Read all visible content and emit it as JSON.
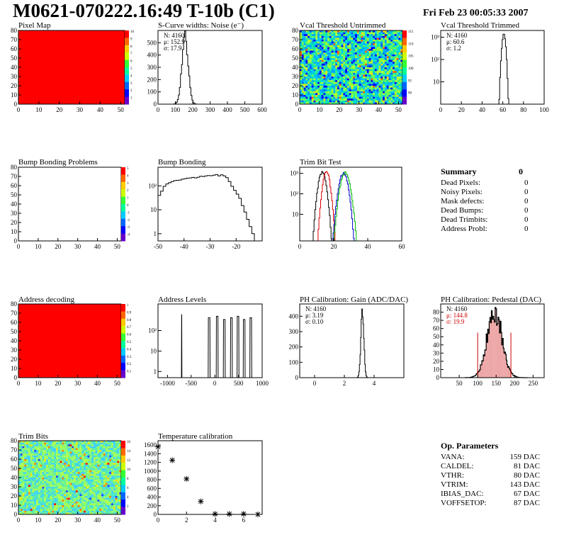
{
  "header": {
    "title": "M0621-070222.16:49 T-10b (C1)",
    "date": "Fri Feb 23 00:05:33 2007"
  },
  "panels": {
    "pixel_map": {
      "title": "Pixel Map"
    },
    "scurve": {
      "title": "S-Curve widths: Noise (e⁻)",
      "stats": [
        "N: 4160",
        "μ: 152.9",
        "σ: 17.9"
      ]
    },
    "vcal_untrimmed": {
      "title": "Vcal Threshold Untrimmed"
    },
    "vcal_trimmed": {
      "title": "Vcal Threshold Trimmed",
      "stats": [
        "N: 4160",
        "μ: 60.6",
        "σ:  1.2"
      ]
    },
    "bump_problems": {
      "title": "Bump Bonding Problems"
    },
    "bump_bonding": {
      "title": "Bump Bonding"
    },
    "trim_bit_test": {
      "title": "Trim Bit Test"
    },
    "address_decoding": {
      "title": "Address decoding"
    },
    "address_levels": {
      "title": "Address Levels"
    },
    "ph_gain": {
      "title": "PH Calibration: Gain (ADC/DAC)",
      "stats": [
        "N: 4160",
        "μ: 3.19",
        "σ: 0.10"
      ]
    },
    "ph_pedestal": {
      "title": "PH Calibration: Pedestal (DAC)",
      "stats": [
        "N: 4160",
        "μ: 144.8",
        "σ: 19.9"
      ]
    },
    "trim_bits": {
      "title": "Trim Bits"
    },
    "temperature": {
      "title": "Temperature calibration"
    }
  },
  "summary": {
    "title": "Summary",
    "value": "0",
    "rows": [
      {
        "label": "Dead Pixels:",
        "value": "0"
      },
      {
        "label": "Noisy Pixels:",
        "value": "0"
      },
      {
        "label": "Mask defects:",
        "value": "0"
      },
      {
        "label": "Dead Bumps:",
        "value": "0"
      },
      {
        "label": "Dead Trimbits:",
        "value": "0"
      },
      {
        "label": "Address Probl:",
        "value": "0"
      }
    ]
  },
  "op_params": {
    "title": "Op. Parameters",
    "rows": [
      {
        "label": "VANA:",
        "value": "159 DAC"
      },
      {
        "label": "CALDEL:",
        "value": "81 DAC"
      },
      {
        "label": "VTHR:",
        "value": "80 DAC"
      },
      {
        "label": "VTRIM:",
        "value": "143 DAC"
      },
      {
        "label": "IBIAS_DAC:",
        "value": "67 DAC"
      },
      {
        "label": "VOFFSETOP:",
        "value": "87 DAC"
      }
    ]
  },
  "colors": {
    "map_red": "#ff0000",
    "ped_red": "#cc0000",
    "trim_red": "#e00000",
    "trim_blue": "#0000cc",
    "trim_green": "#00bb00"
  },
  "chart_data": [
    {
      "id": "pixel_map",
      "type": "heatmap",
      "title": "Pixel Map",
      "xlim": [
        0,
        52
      ],
      "ylim": [
        0,
        80
      ],
      "xticks": [
        0,
        10,
        20,
        30,
        40,
        50
      ],
      "yticks": [
        0,
        10,
        20,
        30,
        40,
        50,
        60,
        70,
        80
      ],
      "uniform_color": "#ff0000",
      "z_max": 10,
      "palette_ticks": [
        1,
        2,
        3,
        4,
        5,
        6,
        7,
        8,
        9,
        10
      ]
    },
    {
      "id": "scurve",
      "type": "bar",
      "title": "S-Curve widths: Noise (e⁻)",
      "xlim": [
        0,
        600
      ],
      "ylim": [
        0,
        600
      ],
      "xticks": [
        0,
        100,
        200,
        300,
        400,
        500,
        600
      ],
      "yticks": [
        0,
        100,
        200,
        300,
        400,
        500
      ],
      "dist": {
        "mean": 152.9,
        "sigma": 17.9,
        "peak": 560
      }
    },
    {
      "id": "vcal_untrimmed",
      "type": "heatmap",
      "title": "Vcal Threshold Untrimmed",
      "xlim": [
        0,
        52
      ],
      "ylim": [
        0,
        80
      ],
      "xticks": [
        0,
        10,
        20,
        30,
        40,
        50
      ],
      "yticks": [
        0,
        10,
        20,
        30,
        40,
        50,
        60,
        70,
        80
      ],
      "palette_ticks": [
        90,
        95,
        100,
        105,
        110,
        115
      ]
    },
    {
      "id": "vcal_trimmed",
      "type": "bar",
      "title": "Vcal Threshold Trimmed",
      "scale": "log",
      "xlim": [
        0,
        100
      ],
      "ylim": [
        1,
        2000
      ],
      "xticks": [
        0,
        20,
        40,
        60,
        80,
        100
      ],
      "ytick_labels": [
        "10",
        "10²",
        "10³"
      ],
      "dist": {
        "mean": 60.6,
        "sigma": 1.2,
        "peak": 1400
      }
    },
    {
      "id": "bump_problems",
      "type": "heatmap",
      "title": "Bump Bonding Problems",
      "xlim": [
        0,
        52
      ],
      "ylim": [
        0,
        80
      ],
      "xticks": [
        0,
        10,
        20,
        30,
        40,
        50
      ],
      "yticks": [
        0,
        10,
        20,
        30,
        40,
        50,
        60,
        70,
        80
      ],
      "empty": true,
      "palette_ticks": [
        -4,
        -3,
        -2,
        -1,
        0,
        1,
        2,
        3,
        4,
        5
      ]
    },
    {
      "id": "bump_bonding",
      "type": "bar",
      "title": "Bump Bonding",
      "scale": "log",
      "xlim": [
        -50,
        -10
      ],
      "ylim": [
        0.5,
        600
      ],
      "xticks": [
        -50,
        -40,
        -30,
        -20
      ],
      "ytick_labels": [
        "1",
        "10",
        "10²"
      ],
      "x": [
        -50,
        -49,
        -48,
        -47,
        -46,
        -45,
        -44,
        -43,
        -42,
        -41,
        -40,
        -39,
        -38,
        -37,
        -36,
        -35,
        -34,
        -33,
        -32,
        -31,
        -30,
        -29,
        -28,
        -27,
        -26,
        -25,
        -24,
        -23,
        -22,
        -21,
        -20,
        -19,
        -18,
        -17,
        -16,
        -15,
        -14,
        -13
      ],
      "values": [
        40,
        60,
        95,
        120,
        135,
        150,
        165,
        170,
        175,
        190,
        200,
        210,
        215,
        225,
        215,
        230,
        250,
        245,
        260,
        270,
        265,
        280,
        295,
        260,
        290,
        260,
        220,
        150,
        95,
        65,
        45,
        30,
        15,
        8,
        4,
        2,
        1,
        0
      ]
    },
    {
      "id": "trim_bit_test",
      "type": "line",
      "title": "Trim Bit Test",
      "scale": "log",
      "xlim": [
        0,
        60
      ],
      "ylim": [
        0.5,
        2000
      ],
      "xticks": [
        0,
        20,
        40,
        60
      ],
      "ytick_labels": [
        "10",
        "10²",
        "10³"
      ],
      "series": [
        {
          "color": "#000000",
          "mean": 13,
          "sigma": 1.4,
          "peak": 1100
        },
        {
          "color": "#e00000",
          "mean": 15.5,
          "sigma": 1.3,
          "peak": 1200
        },
        {
          "color": "#0000cc",
          "mean": 25.5,
          "sigma": 1.6,
          "peak": 1000
        },
        {
          "color": "#00bb00",
          "mean": 26.5,
          "sigma": 1.7,
          "peak": 1100
        }
      ]
    },
    {
      "id": "address_decoding",
      "type": "heatmap",
      "title": "Address decoding",
      "xlim": [
        0,
        52
      ],
      "ylim": [
        0,
        80
      ],
      "xticks": [
        0,
        10,
        20,
        30,
        40,
        50
      ],
      "yticks": [
        0,
        10,
        20,
        30,
        40,
        50,
        60,
        70,
        80
      ],
      "uniform_color": "#ff0000",
      "z_max": 1,
      "palette_ticks": [
        "0.1",
        "0.2",
        "0.3",
        "0.4",
        "0.5",
        "0.6",
        "0.7",
        "0.8",
        "0.9",
        "1"
      ]
    },
    {
      "id": "address_levels",
      "type": "bar",
      "title": "Address Levels",
      "scale": "log",
      "xlim": [
        -1200,
        1000
      ],
      "ylim": [
        0.5,
        2000
      ],
      "xticks": [
        -1000,
        -500,
        0,
        500,
        1000
      ],
      "ytick_labels": [
        "1",
        "10",
        "10²"
      ],
      "peaks": [
        -700,
        -120,
        50,
        200,
        350,
        490,
        620,
        760
      ],
      "peak_height": 500
    },
    {
      "id": "ph_gain",
      "type": "bar",
      "title": "PH Calibration: Gain (ADC/DAC)",
      "xlim": [
        -1,
        6
      ],
      "ylim": [
        0,
        480
      ],
      "xticks": [
        0,
        2,
        4
      ],
      "yticks": [
        0,
        100,
        200,
        300,
        400
      ],
      "dist": {
        "mean": 3.19,
        "sigma": 0.1,
        "peak": 440
      }
    },
    {
      "id": "ph_pedestal",
      "type": "bar",
      "title": "PH Calibration: Pedestal (DAC)",
      "xlim": [
        0,
        280
      ],
      "ylim": [
        0,
        90
      ],
      "xticks": [
        50,
        100,
        150,
        200,
        250
      ],
      "yticks": [
        0,
        10,
        20,
        30,
        40,
        50,
        60,
        70,
        80
      ],
      "dist": {
        "mean": 144.8,
        "sigma": 19.9,
        "peak": 84
      },
      "fit_range": [
        100,
        190
      ]
    },
    {
      "id": "trim_bits",
      "type": "heatmap",
      "title": "Trim Bits",
      "xlim": [
        0,
        52
      ],
      "ylim": [
        0,
        80
      ],
      "xticks": [
        0,
        10,
        20,
        30,
        40,
        50
      ],
      "yticks": [
        0,
        10,
        20,
        30,
        40,
        50,
        60,
        70,
        80
      ],
      "palette_ticks": [
        2,
        4,
        6,
        8,
        10,
        12,
        14,
        16
      ]
    },
    {
      "id": "temperature",
      "type": "scatter",
      "title": "Temperature calibration",
      "xlim": [
        0,
        7.3
      ],
      "ylim": [
        0,
        1700
      ],
      "xticks": [
        0,
        2,
        4,
        6
      ],
      "yticks": [
        0,
        200,
        400,
        600,
        800,
        1000,
        1200,
        1400,
        1600
      ],
      "x": [
        0,
        1,
        2,
        3,
        4,
        5,
        6,
        7
      ],
      "y": [
        1560,
        1250,
        820,
        300,
        10,
        10,
        10,
        0
      ]
    }
  ]
}
